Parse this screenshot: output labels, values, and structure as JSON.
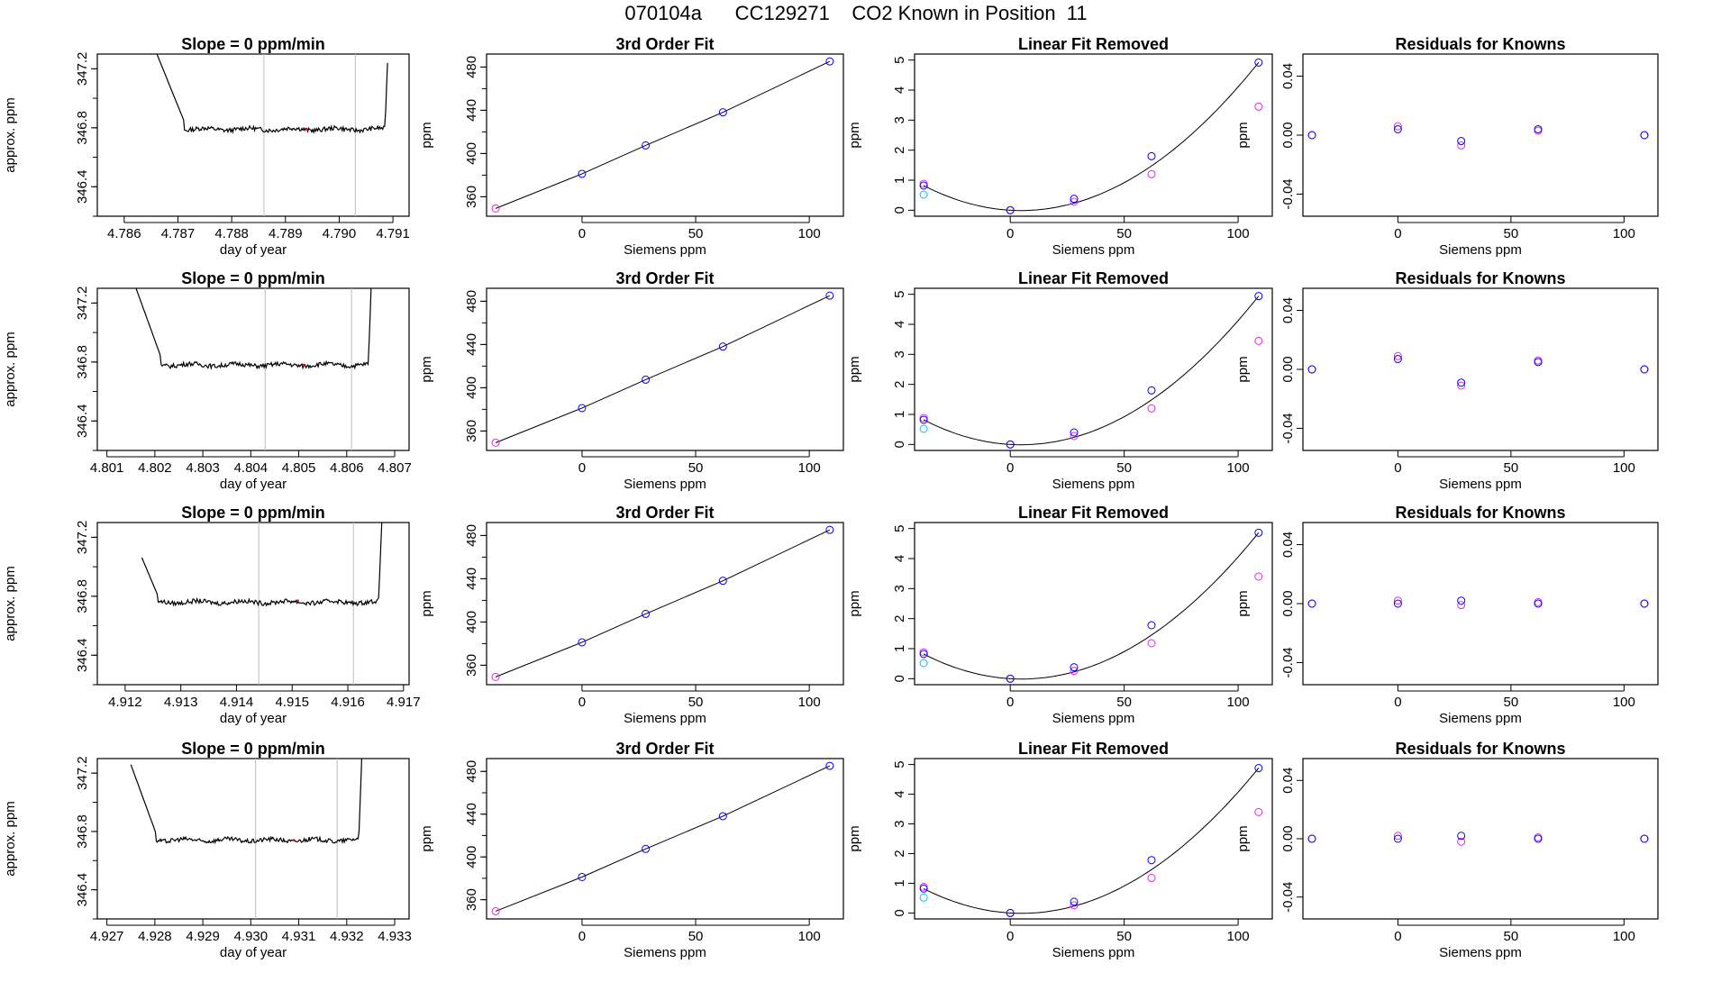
{
  "figure": {
    "title": "070104a      CC129271    CO2 Known in Position  11",
    "colors": {
      "line": "#000000",
      "frame": "#000000",
      "guide": "#bebebe",
      "blue": "#0000ff",
      "magenta": "#ee22ee",
      "cyan": "#11bbee",
      "red": "#ff0000"
    }
  },
  "chart_data": [
    {
      "type": "line",
      "row": 1,
      "col": 1,
      "title": "Slope =  0  ppm/min",
      "xlabel": "day of year",
      "ylabel": "approx. ppm",
      "xlim": [
        4.7855,
        4.7913
      ],
      "ylim": [
        346.2,
        347.3
      ],
      "xticks": [
        "4.786",
        "4.787",
        "4.788",
        "4.789",
        "4.790",
        "4.791"
      ],
      "yticks": [
        "346.4",
        "346.8",
        "347.2"
      ],
      "vlines": [
        4.7886,
        4.7903
      ],
      "red_mark": [
        4.7894,
        346.79
      ],
      "x0": 4.7865,
      "x1": 4.7909,
      "level": 346.79,
      "rise_left": 4.78712,
      "rise_right": 4.79085
    },
    {
      "type": "line",
      "row": 2,
      "col": 1,
      "title": "Slope =  0  ppm/min",
      "xlabel": "day of year",
      "ylabel": "approx. ppm",
      "xlim": [
        4.8008,
        4.8073
      ],
      "ylim": [
        346.2,
        347.3
      ],
      "xticks": [
        "4.801",
        "4.802",
        "4.803",
        "4.804",
        "4.805",
        "4.806",
        "4.807"
      ],
      "yticks": [
        "346.4",
        "346.8",
        "347.2"
      ],
      "vlines": [
        4.8043,
        4.8061
      ],
      "red_mark": [
        4.8051,
        346.78
      ],
      "x0": 4.8016,
      "x1": 4.8067,
      "level": 346.78,
      "rise_left": 4.80213,
      "rise_right": 4.80645
    },
    {
      "type": "line",
      "row": 3,
      "col": 1,
      "title": "Slope =  0  ppm/min",
      "xlabel": "day of year",
      "ylabel": "approx. ppm",
      "xlim": [
        4.9115,
        4.9171
      ],
      "ylim": [
        346.2,
        347.3
      ],
      "xticks": [
        "4.912",
        "4.913",
        "4.914",
        "4.915",
        "4.916",
        "4.917"
      ],
      "yticks": [
        "346.4",
        "346.8",
        "347.2"
      ],
      "vlines": [
        4.9144,
        4.9161
      ],
      "red_mark": [
        4.9151,
        346.77
      ],
      "x0": 4.9123,
      "x1": 4.9167,
      "level": 346.76,
      "rise_left": 4.91258,
      "rise_right": 4.91655
    },
    {
      "type": "line",
      "row": 4,
      "col": 1,
      "title": "Slope =  0  ppm/min",
      "xlabel": "day of year",
      "ylabel": "approx. ppm",
      "xlim": [
        4.9268,
        4.9333
      ],
      "ylim": [
        346.2,
        347.3
      ],
      "xticks": [
        "4.927",
        "4.928",
        "4.929",
        "4.930",
        "4.931",
        "4.932",
        "4.933"
      ],
      "yticks": [
        "346.4",
        "346.8",
        "347.2"
      ],
      "vlines": [
        4.9301,
        4.9318
      ],
      "red_mark": [
        4.9309,
        346.74
      ],
      "x0": 4.9275,
      "x1": 4.9324,
      "level": 346.74,
      "rise_left": 4.92802,
      "rise_right": 4.93225
    },
    {
      "type": "scatter",
      "row": 1,
      "col": 2,
      "title": "3rd Order Fit",
      "xlabel": "Siemens ppm",
      "ylabel": "ppm",
      "xlim": [
        -42,
        115
      ],
      "ylim": [
        342,
        492
      ],
      "xticks": [
        "0",
        "50",
        "100"
      ],
      "yticks": [
        "360",
        "400",
        "440",
        "480"
      ],
      "x": [
        -38,
        0,
        28,
        62,
        109
      ],
      "y": [
        349.2,
        381.2,
        407.5,
        438.1,
        485.2
      ]
    },
    {
      "type": "scatter",
      "row": 2,
      "col": 2,
      "title": "3rd Order Fit",
      "xlabel": "Siemens ppm",
      "ylabel": "ppm",
      "xlim": [
        -42,
        115
      ],
      "ylim": [
        342,
        492
      ],
      "xticks": [
        "0",
        "50",
        "100"
      ],
      "yticks": [
        "360",
        "400",
        "440",
        "480"
      ],
      "x": [
        -38,
        0,
        28,
        62,
        109
      ],
      "y": [
        349.2,
        381.2,
        407.5,
        438.1,
        485.2
      ]
    },
    {
      "type": "scatter",
      "row": 3,
      "col": 2,
      "title": "3rd Order Fit",
      "xlabel": "Siemens ppm",
      "ylabel": "ppm",
      "xlim": [
        -42,
        115
      ],
      "ylim": [
        342,
        492
      ],
      "xticks": [
        "0",
        "50",
        "100"
      ],
      "yticks": [
        "360",
        "400",
        "440",
        "480"
      ],
      "x": [
        -38,
        0,
        28,
        62,
        109
      ],
      "y": [
        349.2,
        381.2,
        407.5,
        438.1,
        485.2
      ]
    },
    {
      "type": "scatter",
      "row": 4,
      "col": 2,
      "title": "3rd Order Fit",
      "xlabel": "Siemens ppm",
      "ylabel": "ppm",
      "xlim": [
        -42,
        115
      ],
      "ylim": [
        342,
        492
      ],
      "xticks": [
        "0",
        "50",
        "100"
      ],
      "yticks": [
        "360",
        "400",
        "440",
        "480"
      ],
      "x": [
        -38,
        0,
        28,
        62,
        109
      ],
      "y": [
        349.2,
        381.2,
        407.5,
        438.1,
        485.2
      ]
    },
    {
      "type": "scatter",
      "row": 1,
      "col": 3,
      "title": "Linear Fit Removed",
      "xlabel": "Siemens ppm",
      "ylabel": "ppm",
      "xlim": [
        -42,
        115
      ],
      "ylim": [
        -0.2,
        5.2
      ],
      "xticks": [
        "0",
        "50",
        "100"
      ],
      "yticks": [
        "0",
        "1",
        "2",
        "3",
        "4",
        "5"
      ],
      "x": [
        -38,
        0,
        28,
        62,
        109
      ],
      "blue": [
        0.82,
        0.0,
        0.38,
        1.8,
        4.92
      ],
      "magenta": [
        0.88,
        0.0,
        0.28,
        1.2,
        3.45
      ],
      "cyan": [
        0.52,
        null,
        null,
        null,
        null
      ]
    },
    {
      "type": "scatter",
      "row": 2,
      "col": 3,
      "title": "Linear Fit Removed",
      "xlabel": "Siemens ppm",
      "ylabel": "ppm",
      "xlim": [
        -42,
        115
      ],
      "ylim": [
        -0.2,
        5.2
      ],
      "xticks": [
        "0",
        "50",
        "100"
      ],
      "yticks": [
        "0",
        "1",
        "2",
        "3",
        "4",
        "5"
      ],
      "x": [
        -38,
        0,
        28,
        62,
        109
      ],
      "blue": [
        0.82,
        0.0,
        0.4,
        1.8,
        4.94
      ],
      "magenta": [
        0.88,
        0.0,
        0.28,
        1.2,
        3.45
      ],
      "cyan": [
        0.52,
        null,
        null,
        null,
        null
      ]
    },
    {
      "type": "scatter",
      "row": 3,
      "col": 3,
      "title": "Linear Fit Removed",
      "xlabel": "Siemens ppm",
      "ylabel": "ppm",
      "xlim": [
        -42,
        115
      ],
      "ylim": [
        -0.2,
        5.2
      ],
      "xticks": [
        "0",
        "50",
        "100"
      ],
      "yticks": [
        "0",
        "1",
        "2",
        "3",
        "4",
        "5"
      ],
      "x": [
        -38,
        0,
        28,
        62,
        109
      ],
      "blue": [
        0.82,
        0.0,
        0.38,
        1.78,
        4.86
      ],
      "magenta": [
        0.88,
        0.0,
        0.26,
        1.18,
        3.4
      ],
      "cyan": [
        0.52,
        null,
        null,
        null,
        null
      ]
    },
    {
      "type": "scatter",
      "row": 4,
      "col": 3,
      "title": "Linear Fit Removed",
      "xlabel": "Siemens ppm",
      "ylabel": "ppm",
      "xlim": [
        -42,
        115
      ],
      "ylim": [
        -0.2,
        5.2
      ],
      "xticks": [
        "0",
        "50",
        "100"
      ],
      "yticks": [
        "0",
        "1",
        "2",
        "3",
        "4",
        "5"
      ],
      "x": [
        -38,
        0,
        28,
        62,
        109
      ],
      "blue": [
        0.82,
        0.0,
        0.38,
        1.78,
        4.88
      ],
      "magenta": [
        0.88,
        0.0,
        0.26,
        1.18,
        3.4
      ],
      "cyan": [
        0.52,
        null,
        null,
        null,
        null
      ]
    },
    {
      "type": "scatter",
      "row": 1,
      "col": 4,
      "title": "Residuals for Knowns",
      "xlabel": "Siemens ppm",
      "ylabel": "ppm",
      "xlim": [
        -42,
        115
      ],
      "ylim": [
        -0.055,
        0.055
      ],
      "xticks": [
        "0",
        "50",
        "100"
      ],
      "yticks": [
        "-0.04",
        "0.00",
        "0.04"
      ],
      "x": [
        -38,
        0,
        28,
        62,
        109
      ],
      "blue": [
        0.0,
        0.004,
        -0.004,
        0.004,
        0.0
      ],
      "magenta": [
        0.0,
        0.006,
        -0.007,
        0.003,
        0.0
      ]
    },
    {
      "type": "scatter",
      "row": 2,
      "col": 4,
      "title": "Residuals for Knowns",
      "xlabel": "Siemens ppm",
      "ylabel": "ppm",
      "xlim": [
        -42,
        115
      ],
      "ylim": [
        -0.055,
        0.055
      ],
      "xticks": [
        "0",
        "50",
        "100"
      ],
      "yticks": [
        "-0.04",
        "0.00",
        "0.04"
      ],
      "x": [
        -38,
        0,
        28,
        62,
        109
      ],
      "blue": [
        0.0,
        0.007,
        -0.009,
        0.005,
        0.0
      ],
      "magenta": [
        0.0,
        0.009,
        -0.011,
        0.006,
        0.0
      ]
    },
    {
      "type": "scatter",
      "row": 3,
      "col": 4,
      "title": "Residuals for Knowns",
      "xlabel": "Siemens ppm",
      "ylabel": "ppm",
      "xlim": [
        -42,
        115
      ],
      "ylim": [
        -0.055,
        0.055
      ],
      "xticks": [
        "0",
        "50",
        "100"
      ],
      "yticks": [
        "-0.04",
        "0.00",
        "0.04"
      ],
      "x": [
        -38,
        0,
        28,
        62,
        109
      ],
      "blue": [
        0.0,
        0.0,
        0.002,
        0.0,
        0.0
      ],
      "magenta": [
        0.0,
        0.002,
        -0.001,
        0.001,
        0.0
      ]
    },
    {
      "type": "scatter",
      "row": 4,
      "col": 4,
      "title": "Residuals for Knowns",
      "xlabel": "Siemens ppm",
      "ylabel": "ppm",
      "xlim": [
        -42,
        115
      ],
      "ylim": [
        -0.055,
        0.055
      ],
      "xticks": [
        "0",
        "50",
        "100"
      ],
      "yticks": [
        "-0.04",
        "0.00",
        "0.04"
      ],
      "x": [
        -38,
        0,
        28,
        62,
        109
      ],
      "blue": [
        0.0,
        0.0,
        0.002,
        0.0,
        0.0
      ],
      "magenta": [
        0.0,
        0.002,
        -0.002,
        0.001,
        0.0
      ]
    }
  ]
}
